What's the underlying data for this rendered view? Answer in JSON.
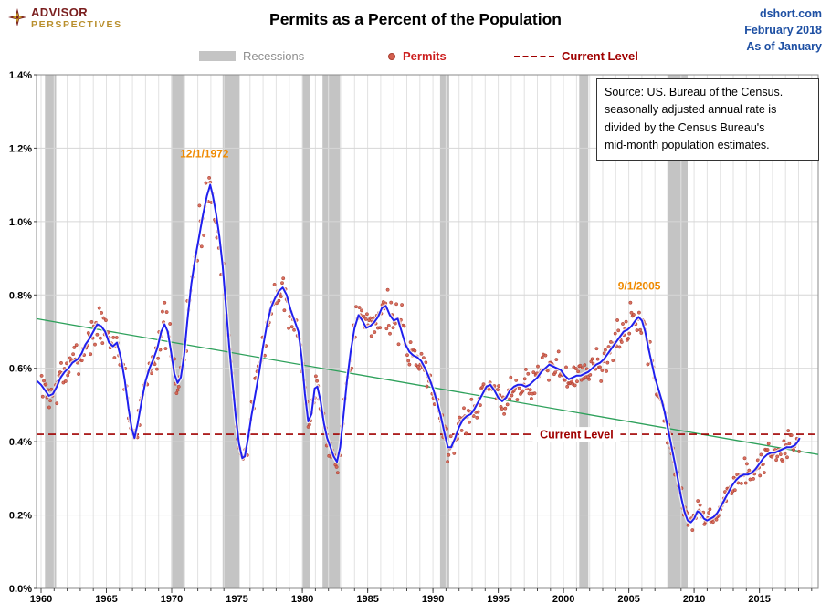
{
  "header": {
    "logo_line1": "ADVISOR",
    "logo_line2": "PERSPECTIVES",
    "title": "Permits as a Percent of the Population",
    "site": "dshort.com",
    "date": "February 2018",
    "as_of": "As of January"
  },
  "legend": {
    "recessions": "Recessions",
    "permits": "Permits",
    "current_level": "Current Level"
  },
  "source_note": {
    "lines": [
      "Source: US. Bureau of the Census.",
      "seasonally adjusted annual rate is",
      "divided by the Census Bureau's",
      "mid-month  population estimates."
    ]
  },
  "chart_data": {
    "type": "line",
    "title": "Permits as a Percent of the Population",
    "xlabel": "",
    "ylabel": "",
    "grid": true,
    "legend_position": "top",
    "x_range": [
      1959.65,
      2019.5
    ],
    "y_range": [
      0,
      1.4
    ],
    "x_ticks": [
      1960,
      1965,
      1970,
      1975,
      1980,
      1985,
      1990,
      1995,
      2000,
      2005,
      2010,
      2015
    ],
    "y_ticks": [
      "0.0%",
      "0.2%",
      "0.4%",
      "0.6%",
      "0.8%",
      "1.0%",
      "1.2%",
      "1.4%"
    ],
    "y_tick_values": [
      0,
      0.2,
      0.4,
      0.6,
      0.8,
      1.0,
      1.2,
      1.4
    ],
    "recessions": [
      [
        1960.3,
        1961.15
      ],
      [
        1969.95,
        1970.9
      ],
      [
        1973.9,
        1975.2
      ],
      [
        1980.0,
        1980.55
      ],
      [
        1981.55,
        1982.9
      ],
      [
        1990.55,
        1991.25
      ],
      [
        2001.2,
        2001.9
      ],
      [
        2007.95,
        2009.5
      ]
    ],
    "current_level": {
      "value": 0.42,
      "label": "Current Level",
      "label_x": 2001,
      "color": "#a00000"
    },
    "trend_line": {
      "x": [
        1959.65,
        2019.5
      ],
      "y": [
        0.735,
        0.365
      ],
      "color": "#2ca05a"
    },
    "annotations": [
      {
        "text": "12/1/1972",
        "x": 1972.5,
        "y": 1.175,
        "color": "#ef8a00"
      },
      {
        "text": "9/1/2005",
        "x": 2005.8,
        "y": 0.815,
        "color": "#ef8a00"
      }
    ],
    "series": [
      {
        "name": "Permits smoothed trend",
        "type": "line",
        "color": "#2020ee",
        "points": [
          [
            1959.7,
            0.565
          ],
          [
            1960,
            0.555
          ],
          [
            1960.3,
            0.54
          ],
          [
            1960.6,
            0.525
          ],
          [
            1960.9,
            0.53
          ],
          [
            1961.2,
            0.55
          ],
          [
            1961.5,
            0.575
          ],
          [
            1961.8,
            0.59
          ],
          [
            1962.1,
            0.6
          ],
          [
            1962.4,
            0.615
          ],
          [
            1962.8,
            0.625
          ],
          [
            1963.1,
            0.64
          ],
          [
            1963.4,
            0.665
          ],
          [
            1963.7,
            0.68
          ],
          [
            1964,
            0.7
          ],
          [
            1964.3,
            0.72
          ],
          [
            1964.6,
            0.715
          ],
          [
            1964.9,
            0.7
          ],
          [
            1965.2,
            0.67
          ],
          [
            1965.5,
            0.66
          ],
          [
            1965.8,
            0.67
          ],
          [
            1966.1,
            0.63
          ],
          [
            1966.4,
            0.57
          ],
          [
            1966.7,
            0.49
          ],
          [
            1966.95,
            0.435
          ],
          [
            1967.15,
            0.41
          ],
          [
            1967.4,
            0.45
          ],
          [
            1967.7,
            0.51
          ],
          [
            1968,
            0.565
          ],
          [
            1968.3,
            0.6
          ],
          [
            1968.6,
            0.625
          ],
          [
            1968.9,
            0.655
          ],
          [
            1969.2,
            0.7
          ],
          [
            1969.45,
            0.72
          ],
          [
            1969.7,
            0.7
          ],
          [
            1969.95,
            0.645
          ],
          [
            1970.2,
            0.585
          ],
          [
            1970.45,
            0.56
          ],
          [
            1970.7,
            0.575
          ],
          [
            1970.95,
            0.635
          ],
          [
            1971.2,
            0.73
          ],
          [
            1971.5,
            0.83
          ],
          [
            1971.8,
            0.9
          ],
          [
            1972.1,
            0.96
          ],
          [
            1972.4,
            1.02
          ],
          [
            1972.7,
            1.07
          ],
          [
            1972.95,
            1.1
          ],
          [
            1973.15,
            1.07
          ],
          [
            1973.4,
            1.02
          ],
          [
            1973.65,
            0.96
          ],
          [
            1973.9,
            0.88
          ],
          [
            1974.15,
            0.77
          ],
          [
            1974.4,
            0.66
          ],
          [
            1974.65,
            0.565
          ],
          [
            1974.9,
            0.47
          ],
          [
            1975.15,
            0.395
          ],
          [
            1975.4,
            0.355
          ],
          [
            1975.6,
            0.36
          ],
          [
            1975.85,
            0.41
          ],
          [
            1976.1,
            0.47
          ],
          [
            1976.4,
            0.53
          ],
          [
            1976.7,
            0.59
          ],
          [
            1977,
            0.66
          ],
          [
            1977.3,
            0.72
          ],
          [
            1977.6,
            0.765
          ],
          [
            1977.9,
            0.79
          ],
          [
            1978.2,
            0.81
          ],
          [
            1978.5,
            0.82
          ],
          [
            1978.8,
            0.8
          ],
          [
            1979.1,
            0.76
          ],
          [
            1979.4,
            0.73
          ],
          [
            1979.7,
            0.7
          ],
          [
            1979.95,
            0.63
          ],
          [
            1980.2,
            0.53
          ],
          [
            1980.45,
            0.455
          ],
          [
            1980.7,
            0.475
          ],
          [
            1980.95,
            0.545
          ],
          [
            1981.15,
            0.55
          ],
          [
            1981.4,
            0.51
          ],
          [
            1981.65,
            0.45
          ],
          [
            1981.9,
            0.41
          ],
          [
            1982.15,
            0.385
          ],
          [
            1982.4,
            0.36
          ],
          [
            1982.65,
            0.345
          ],
          [
            1982.9,
            0.385
          ],
          [
            1983.15,
            0.47
          ],
          [
            1983.4,
            0.56
          ],
          [
            1983.7,
            0.645
          ],
          [
            1984,
            0.71
          ],
          [
            1984.3,
            0.745
          ],
          [
            1984.6,
            0.73
          ],
          [
            1984.9,
            0.71
          ],
          [
            1985.2,
            0.715
          ],
          [
            1985.5,
            0.725
          ],
          [
            1985.8,
            0.74
          ],
          [
            1986.1,
            0.765
          ],
          [
            1986.4,
            0.77
          ],
          [
            1986.7,
            0.745
          ],
          [
            1987,
            0.73
          ],
          [
            1987.3,
            0.735
          ],
          [
            1987.6,
            0.7
          ],
          [
            1987.9,
            0.665
          ],
          [
            1988.2,
            0.645
          ],
          [
            1988.5,
            0.635
          ],
          [
            1988.8,
            0.63
          ],
          [
            1989.1,
            0.62
          ],
          [
            1989.4,
            0.6
          ],
          [
            1989.7,
            0.575
          ],
          [
            1990,
            0.545
          ],
          [
            1990.3,
            0.51
          ],
          [
            1990.6,
            0.47
          ],
          [
            1990.9,
            0.42
          ],
          [
            1991.15,
            0.385
          ],
          [
            1991.4,
            0.385
          ],
          [
            1991.7,
            0.41
          ],
          [
            1992,
            0.44
          ],
          [
            1992.3,
            0.46
          ],
          [
            1992.6,
            0.47
          ],
          [
            1992.9,
            0.475
          ],
          [
            1993.2,
            0.49
          ],
          [
            1993.5,
            0.51
          ],
          [
            1993.8,
            0.53
          ],
          [
            1994.1,
            0.55
          ],
          [
            1994.4,
            0.555
          ],
          [
            1994.7,
            0.54
          ],
          [
            1995,
            0.52
          ],
          [
            1995.3,
            0.51
          ],
          [
            1995.6,
            0.52
          ],
          [
            1995.9,
            0.54
          ],
          [
            1996.2,
            0.55
          ],
          [
            1996.5,
            0.555
          ],
          [
            1996.8,
            0.555
          ],
          [
            1997.1,
            0.55
          ],
          [
            1997.4,
            0.555
          ],
          [
            1997.7,
            0.565
          ],
          [
            1998,
            0.575
          ],
          [
            1998.3,
            0.59
          ],
          [
            1998.6,
            0.6
          ],
          [
            1998.9,
            0.61
          ],
          [
            1999.2,
            0.605
          ],
          [
            1999.5,
            0.6
          ],
          [
            1999.8,
            0.595
          ],
          [
            2000.1,
            0.58
          ],
          [
            2000.4,
            0.57
          ],
          [
            2000.7,
            0.575
          ],
          [
            2001,
            0.58
          ],
          [
            2001.3,
            0.58
          ],
          [
            2001.6,
            0.585
          ],
          [
            2001.9,
            0.59
          ],
          [
            2002.2,
            0.6
          ],
          [
            2002.5,
            0.61
          ],
          [
            2002.8,
            0.615
          ],
          [
            2003.1,
            0.625
          ],
          [
            2003.4,
            0.64
          ],
          [
            2003.7,
            0.655
          ],
          [
            2004,
            0.67
          ],
          [
            2004.3,
            0.685
          ],
          [
            2004.6,
            0.7
          ],
          [
            2004.9,
            0.705
          ],
          [
            2005.2,
            0.715
          ],
          [
            2005.5,
            0.73
          ],
          [
            2005.75,
            0.74
          ],
          [
            2006,
            0.73
          ],
          [
            2006.25,
            0.7
          ],
          [
            2006.5,
            0.655
          ],
          [
            2006.75,
            0.615
          ],
          [
            2007,
            0.575
          ],
          [
            2007.25,
            0.545
          ],
          [
            2007.5,
            0.515
          ],
          [
            2007.75,
            0.48
          ],
          [
            2008,
            0.435
          ],
          [
            2008.25,
            0.39
          ],
          [
            2008.5,
            0.345
          ],
          [
            2008.75,
            0.3
          ],
          [
            2009,
            0.25
          ],
          [
            2009.25,
            0.21
          ],
          [
            2009.5,
            0.185
          ],
          [
            2009.75,
            0.18
          ],
          [
            2010,
            0.19
          ],
          [
            2010.25,
            0.21
          ],
          [
            2010.5,
            0.205
          ],
          [
            2010.75,
            0.19
          ],
          [
            2011,
            0.185
          ],
          [
            2011.25,
            0.19
          ],
          [
            2011.5,
            0.195
          ],
          [
            2011.75,
            0.205
          ],
          [
            2012,
            0.22
          ],
          [
            2012.3,
            0.24
          ],
          [
            2012.6,
            0.26
          ],
          [
            2012.9,
            0.28
          ],
          [
            2013.2,
            0.295
          ],
          [
            2013.5,
            0.305
          ],
          [
            2013.8,
            0.31
          ],
          [
            2014.1,
            0.31
          ],
          [
            2014.4,
            0.315
          ],
          [
            2014.7,
            0.325
          ],
          [
            2015,
            0.34
          ],
          [
            2015.3,
            0.355
          ],
          [
            2015.6,
            0.365
          ],
          [
            2015.9,
            0.37
          ],
          [
            2016.2,
            0.37
          ],
          [
            2016.5,
            0.375
          ],
          [
            2016.8,
            0.38
          ],
          [
            2017.1,
            0.385
          ],
          [
            2017.4,
            0.385
          ],
          [
            2017.7,
            0.39
          ],
          [
            2017.95,
            0.4
          ],
          [
            2018.08,
            0.41
          ]
        ]
      },
      {
        "name": "Permits",
        "type": "scatter",
        "color": "#d4604f",
        "edge_color": "#a63a2c",
        "note": "monthly values scattered around the smoothed line",
        "seed": 7,
        "noise": 0.09,
        "step_years": 0.08333,
        "x_start": 1960.04,
        "x_end": 2018.05
      }
    ],
    "colors": {
      "recession_band": "#c4c4c4",
      "grid_vertical": "#e2e2e2",
      "grid_horizontal": "#d6d6d6",
      "plot_border": "#8a8a8a",
      "axis_tick": "#444444"
    }
  }
}
